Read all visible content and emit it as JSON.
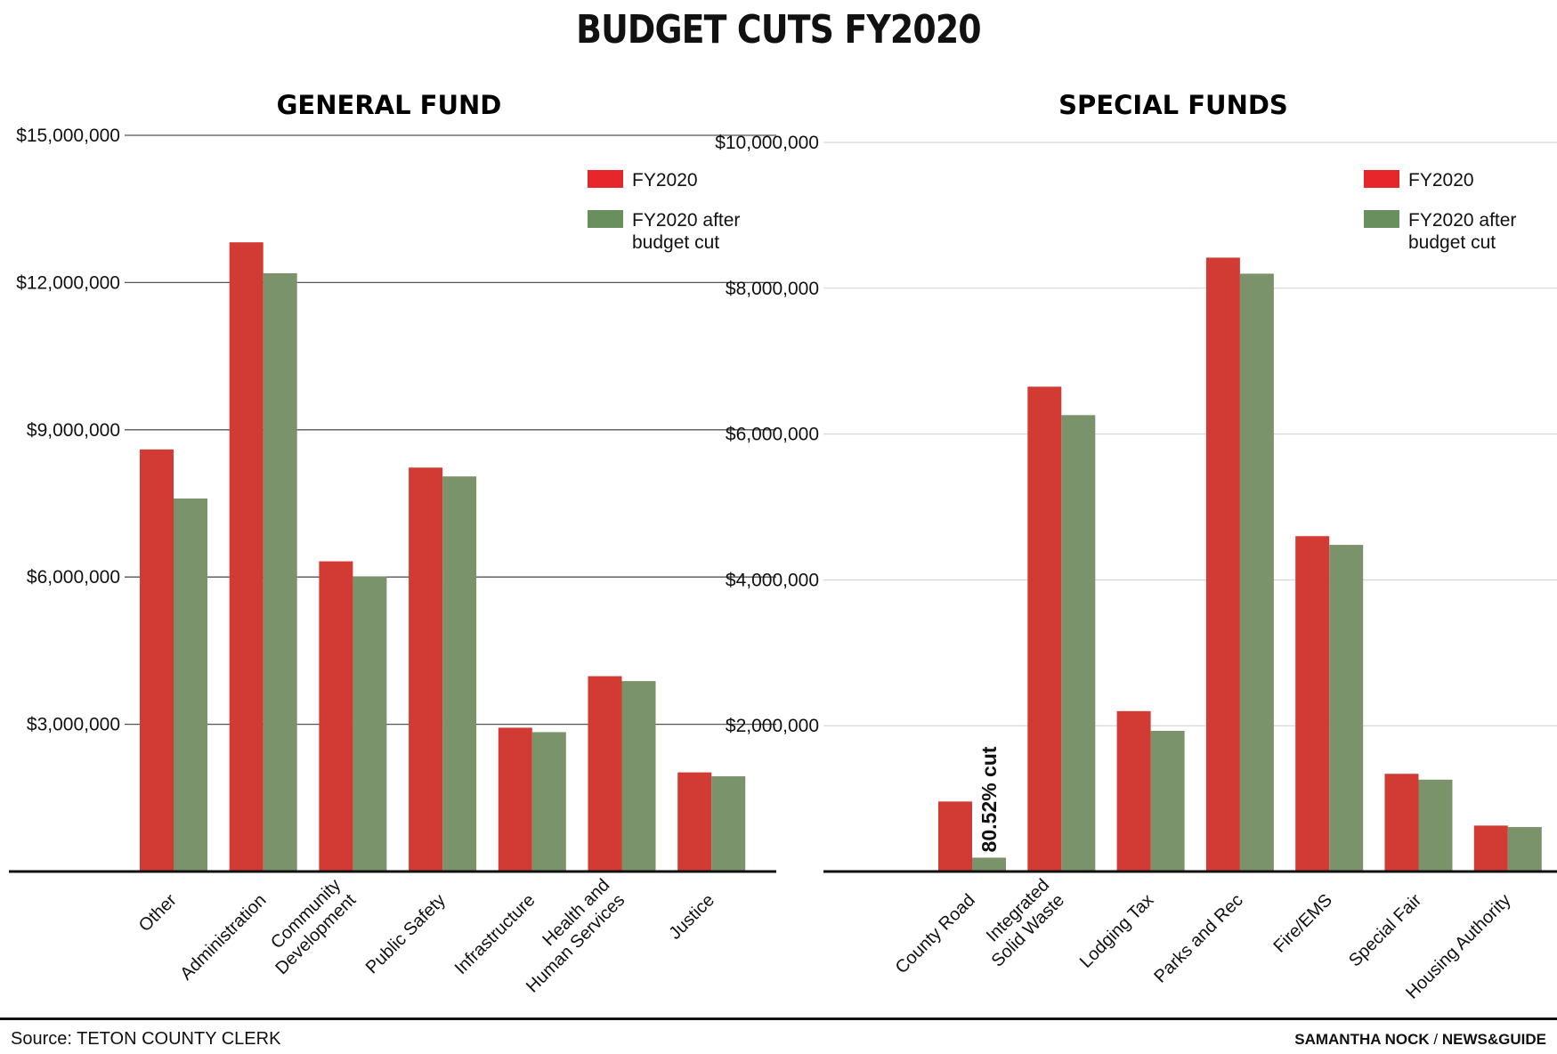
{
  "title": "BUDGET CUTS FY2020",
  "source": "Source: TETON COUNTY CLERK",
  "credit": {
    "author": "SAMANTHA NOCK",
    "separator": "/",
    "outlet": "NEWS&GUIDE"
  },
  "colors": {
    "fy2020": "#d13b33",
    "after_cut": "#7b936a",
    "legend_fy2020": "#e6262b",
    "legend_after": "#698f5e"
  },
  "chart_data": [
    {
      "type": "bar",
      "title": "GENERAL FUND",
      "categories": [
        [
          "Other"
        ],
        [
          "Administration"
        ],
        [
          "Community",
          "Development"
        ],
        [
          "Public Safety"
        ],
        [
          "Infrastructure"
        ],
        [
          "Health and",
          "Human Services"
        ],
        [
          "Justice"
        ]
      ],
      "series": [
        {
          "name": "FY2020",
          "values": [
            8600000,
            12820000,
            6320000,
            8230000,
            2930000,
            3980000,
            2020000
          ]
        },
        {
          "name": "FY2020 after budget cut",
          "values": [
            7600000,
            12190000,
            6010000,
            8050000,
            2840000,
            3880000,
            1940000
          ]
        }
      ],
      "yticks": [
        3000000,
        6000000,
        9000000,
        12000000,
        15000000
      ],
      "ytick_labels": [
        "$3,000,000",
        "$6,000,000",
        "$9,000,000",
        "$12,000,000",
        "$15,000,000"
      ],
      "ylim": [
        0,
        15000000
      ],
      "grid": true,
      "legend": {
        "position": "top-right",
        "entries": [
          "FY2020",
          "FY2020 after",
          "budget cut"
        ]
      }
    },
    {
      "type": "bar",
      "title": "SPECIAL FUNDS",
      "categories": [
        [
          "County Road"
        ],
        [
          "Integrated",
          "Solid Waste"
        ],
        [
          "Lodging Tax"
        ],
        [
          "Parks and Rec"
        ],
        [
          "Fire/EMS"
        ],
        [
          "Special Fair"
        ],
        [
          "Housing Authority"
        ]
      ],
      "series": [
        {
          "name": "FY2020",
          "values": [
            960000,
            6650000,
            2200000,
            8420000,
            4600000,
            1340000,
            630000
          ]
        },
        {
          "name": "FY2020 after budget cut",
          "values": [
            190000,
            6260000,
            1930000,
            8200000,
            4480000,
            1260000,
            610000
          ]
        }
      ],
      "yticks": [
        2000000,
        4000000,
        6000000,
        8000000,
        10000000
      ],
      "ytick_labels": [
        "$2,000,000",
        "$4,000,000",
        "$6,000,000",
        "$8,000,000",
        "$10,000,000"
      ],
      "ylim": [
        0,
        10000000
      ],
      "grid": true,
      "legend": {
        "position": "top-right",
        "entries": [
          "FY2020",
          "FY2020 after",
          "budget cut"
        ]
      },
      "annotations": [
        {
          "text": "80.52% cut",
          "category": "County Road"
        }
      ]
    }
  ]
}
